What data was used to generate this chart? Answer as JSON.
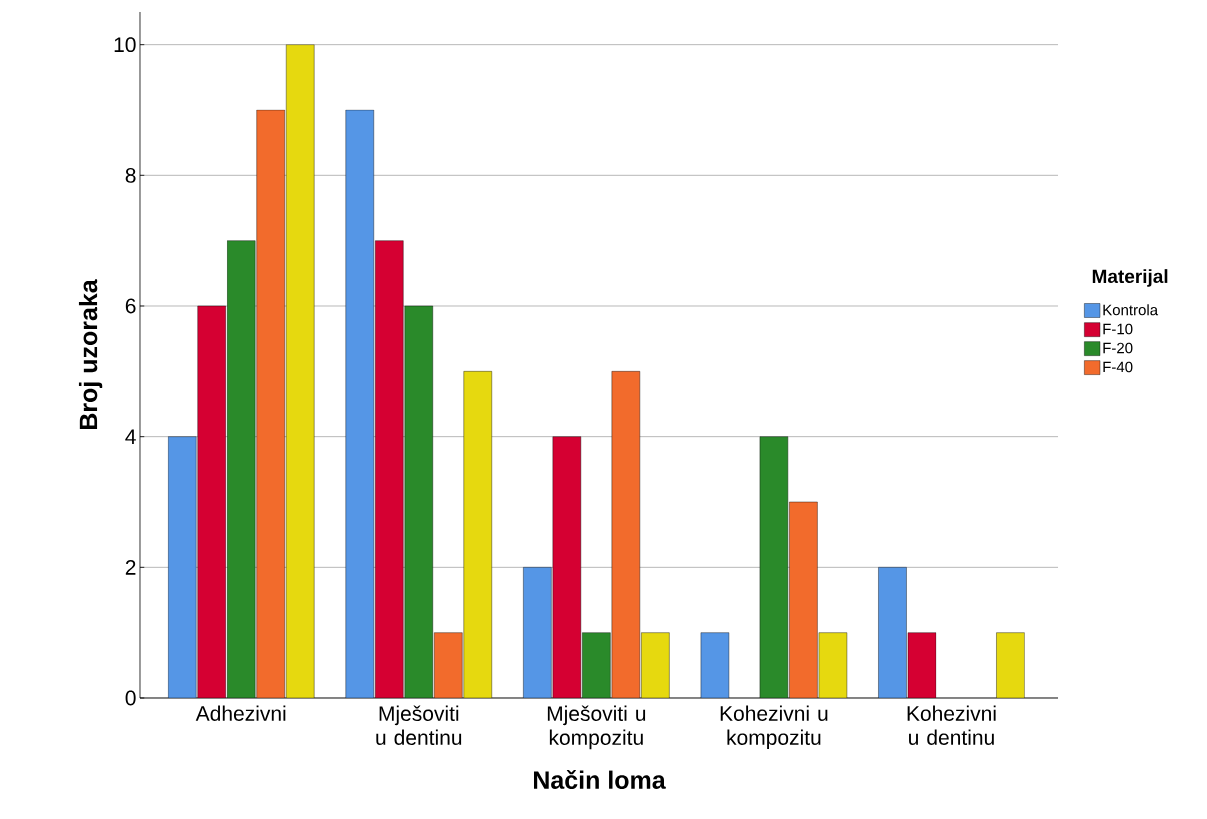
{
  "chart_data": {
    "type": "bar",
    "xlabel": "Način loma",
    "ylabel": "Broj uzoraka",
    "legend_title": "Materijal",
    "categories": [
      "Adhezivni",
      "Mješoviti u dentinu",
      "Mješoviti u kompozitu",
      "Kohezivni u kompozitu",
      "Kohezivni u dentinu"
    ],
    "series": [
      {
        "name": "Kontrola",
        "color": "#5596e6",
        "values": [
          4,
          9,
          2,
          1,
          2
        ]
      },
      {
        "name": "F-10",
        "color": "#d50032",
        "values": [
          6,
          7,
          4,
          0,
          1
        ]
      },
      {
        "name": "F-20",
        "color": "#2a8a2a",
        "values": [
          7,
          6,
          1,
          4,
          0
        ]
      },
      {
        "name": "F-40",
        "color": "#f26b2c",
        "values": [
          9,
          1,
          5,
          3,
          0
        ]
      },
      {
        "color": "#e6d90f",
        "values": [
          10,
          5,
          1,
          1,
          1
        ]
      }
    ],
    "ylim": [
      0,
      10.5
    ],
    "yticks": [
      0,
      2,
      4,
      6,
      8,
      10
    ],
    "grid": "y",
    "legend": "right"
  }
}
